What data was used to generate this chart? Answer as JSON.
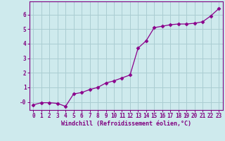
{
  "x": [
    0,
    1,
    2,
    3,
    4,
    5,
    6,
    7,
    8,
    9,
    10,
    11,
    12,
    13,
    14,
    15,
    16,
    17,
    18,
    19,
    20,
    21,
    22,
    23
  ],
  "y": [
    -0.2,
    -0.05,
    -0.05,
    -0.1,
    -0.3,
    0.55,
    0.65,
    0.85,
    1.0,
    1.3,
    1.45,
    1.65,
    1.85,
    3.7,
    4.2,
    5.1,
    5.2,
    5.3,
    5.35,
    5.35,
    5.4,
    5.5,
    5.9,
    6.4
  ],
  "line_color": "#8b008b",
  "marker": "D",
  "markersize": 2.5,
  "linewidth": 0.9,
  "xlabel": "Windchill (Refroidissement éolien,°C)",
  "xlabel_fontsize": 6,
  "ylabel_ticks": [
    0,
    1,
    2,
    3,
    4,
    5,
    6
  ],
  "ytick_labels": [
    "-0",
    "1",
    "2",
    "3",
    "4",
    "5",
    "6"
  ],
  "ylim": [
    -0.55,
    6.9
  ],
  "xlim": [
    -0.5,
    23.5
  ],
  "xtick_labels": [
    "0",
    "1",
    "2",
    "3",
    "4",
    "5",
    "6",
    "7",
    "8",
    "9",
    "10",
    "11",
    "12",
    "13",
    "14",
    "15",
    "16",
    "17",
    "18",
    "19",
    "20",
    "21",
    "22",
    "23"
  ],
  "bg_color": "#ceeaed",
  "grid_color": "#aacdd2",
  "tick_color": "#800080",
  "tick_fontsize": 5.5,
  "spine_color": "#800080"
}
